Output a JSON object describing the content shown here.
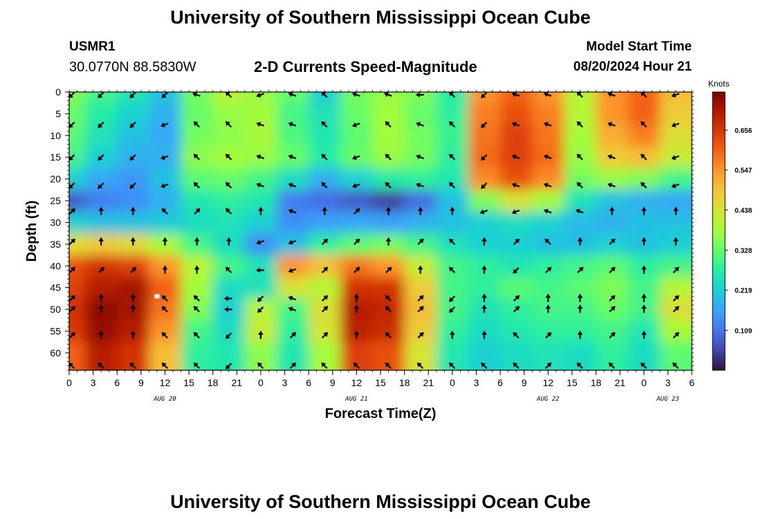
{
  "page": {
    "title_top": "University of Southern Mississippi Ocean Cube",
    "title_bottom": "University of Southern Mississippi Ocean Cube",
    "station": "USMR1",
    "coords": "30.0770N  88.5830W",
    "subtitle": "2-D Currents Speed-Magnitude",
    "model_start_label": "Model Start Time",
    "model_start_value": "08/20/2024 Hour 21"
  },
  "colors": {
    "colormap": [
      "#30123b",
      "#4145ab",
      "#4675ed",
      "#39a2fc",
      "#1bcfd4",
      "#24eca6",
      "#61fc6c",
      "#a4fc3b",
      "#d1e834",
      "#f3c63a",
      "#fe9b2d",
      "#f36315",
      "#d93806",
      "#b11901",
      "#7a0402"
    ],
    "arrow": "#000000",
    "marker": "#ffffff"
  },
  "chart_data": {
    "type": "heatmap",
    "xlabel": "Forecast Time(Z)",
    "ylabel": "Depth (ft)",
    "colorbar_label": "Knots",
    "colorbar_ticks": [
      "0.109",
      "0.219",
      "0.328",
      "0.438",
      "0.547",
      "0.656"
    ],
    "colorbar_range": [
      0.0,
      0.76
    ],
    "ylim": [
      0,
      64
    ],
    "xlim_hours": [
      0,
      78
    ],
    "y_ticks": [
      "0",
      "5",
      "10",
      "15",
      "20",
      "25",
      "30",
      "35",
      "40",
      "45",
      "50",
      "55",
      "60"
    ],
    "x_ticks": [
      "0",
      "3",
      "6",
      "9",
      "12",
      "15",
      "18",
      "21",
      "0",
      "3",
      "6",
      "9",
      "12",
      "15",
      "18",
      "21",
      "0",
      "3",
      "6",
      "9",
      "12",
      "15",
      "18",
      "21",
      "0",
      "3",
      "6"
    ],
    "date_labels": [
      {
        "text": "AUG 20",
        "hour": 12
      },
      {
        "text": "AUG 21",
        "hour": 36
      },
      {
        "text": "AUG 22",
        "hour": 60
      },
      {
        "text": "AUG 23",
        "hour": 75
      }
    ],
    "grid_hours": [
      0,
      4,
      8,
      12,
      16,
      20,
      24,
      28,
      32,
      36,
      40,
      44,
      48,
      52,
      56,
      60,
      64,
      68,
      72,
      76
    ],
    "grid_depths": [
      0,
      5,
      10,
      15,
      20,
      25,
      30,
      35,
      40,
      45,
      50,
      55,
      60
    ],
    "speed_knots": [
      [
        0.35,
        0.3,
        0.26,
        0.2,
        0.34,
        0.4,
        0.37,
        0.33,
        0.22,
        0.34,
        0.37,
        0.35,
        0.27,
        0.55,
        0.6,
        0.55,
        0.4,
        0.55,
        0.6,
        0.5
      ],
      [
        0.33,
        0.27,
        0.22,
        0.18,
        0.33,
        0.37,
        0.38,
        0.3,
        0.25,
        0.33,
        0.38,
        0.33,
        0.28,
        0.57,
        0.62,
        0.57,
        0.4,
        0.55,
        0.6,
        0.48
      ],
      [
        0.32,
        0.25,
        0.2,
        0.17,
        0.34,
        0.36,
        0.39,
        0.31,
        0.26,
        0.32,
        0.38,
        0.34,
        0.29,
        0.58,
        0.64,
        0.58,
        0.38,
        0.52,
        0.57,
        0.45
      ],
      [
        0.3,
        0.22,
        0.18,
        0.18,
        0.36,
        0.38,
        0.37,
        0.33,
        0.27,
        0.33,
        0.37,
        0.34,
        0.28,
        0.59,
        0.64,
        0.59,
        0.37,
        0.48,
        0.5,
        0.42
      ],
      [
        0.22,
        0.17,
        0.15,
        0.2,
        0.32,
        0.33,
        0.3,
        0.24,
        0.18,
        0.22,
        0.27,
        0.28,
        0.26,
        0.56,
        0.62,
        0.56,
        0.34,
        0.37,
        0.35,
        0.3
      ],
      [
        0.08,
        0.12,
        0.14,
        0.18,
        0.26,
        0.28,
        0.26,
        0.12,
        0.1,
        0.08,
        0.05,
        0.1,
        0.2,
        0.35,
        0.44,
        0.38,
        0.25,
        0.2,
        0.18,
        0.17
      ],
      [
        0.22,
        0.2,
        0.2,
        0.21,
        0.24,
        0.25,
        0.22,
        0.14,
        0.16,
        0.17,
        0.16,
        0.18,
        0.2,
        0.22,
        0.24,
        0.22,
        0.19,
        0.18,
        0.2,
        0.2
      ],
      [
        0.45,
        0.48,
        0.46,
        0.38,
        0.3,
        0.24,
        0.14,
        0.2,
        0.28,
        0.32,
        0.34,
        0.3,
        0.25,
        0.22,
        0.22,
        0.2,
        0.2,
        0.22,
        0.2,
        0.22
      ],
      [
        0.62,
        0.66,
        0.64,
        0.55,
        0.4,
        0.3,
        0.25,
        0.55,
        0.5,
        0.58,
        0.55,
        0.42,
        0.3,
        0.28,
        0.26,
        0.28,
        0.3,
        0.32,
        0.28,
        0.3
      ],
      [
        0.64,
        0.7,
        0.72,
        0.6,
        0.38,
        0.24,
        0.25,
        0.44,
        0.4,
        0.66,
        0.66,
        0.48,
        0.3,
        0.28,
        0.32,
        0.3,
        0.32,
        0.35,
        0.3,
        0.4
      ],
      [
        0.66,
        0.74,
        0.72,
        0.58,
        0.35,
        0.22,
        0.4,
        0.3,
        0.45,
        0.7,
        0.68,
        0.5,
        0.3,
        0.25,
        0.28,
        0.3,
        0.3,
        0.33,
        0.3,
        0.45
      ],
      [
        0.65,
        0.73,
        0.7,
        0.55,
        0.3,
        0.24,
        0.42,
        0.28,
        0.44,
        0.69,
        0.67,
        0.48,
        0.28,
        0.24,
        0.26,
        0.28,
        0.28,
        0.3,
        0.26,
        0.38
      ],
      [
        0.6,
        0.7,
        0.66,
        0.5,
        0.28,
        0.26,
        0.36,
        0.26,
        0.38,
        0.64,
        0.62,
        0.44,
        0.26,
        0.22,
        0.24,
        0.25,
        0.24,
        0.28,
        0.24,
        0.32
      ]
    ],
    "arrow_hours": [
      0,
      4,
      8,
      12,
      16,
      20,
      24,
      28,
      32,
      36,
      40,
      44,
      48,
      52,
      56,
      60,
      64,
      68,
      72,
      76
    ],
    "arrow_depths": [
      0,
      7.5,
      15,
      21.5,
      27.5,
      34.5,
      41,
      47.5,
      50,
      56,
      63
    ],
    "arrow_dirs_deg": [
      [
        225,
        225,
        225,
        225,
        160,
        135,
        200,
        160,
        135,
        160,
        160,
        180,
        135,
        225,
        160,
        160,
        135,
        160,
        135,
        200
      ],
      [
        225,
        225,
        225,
        200,
        135,
        135,
        160,
        160,
        135,
        200,
        135,
        160,
        135,
        225,
        160,
        160,
        135,
        160,
        135,
        200
      ],
      [
        225,
        225,
        225,
        200,
        135,
        135,
        160,
        160,
        135,
        200,
        135,
        160,
        135,
        225,
        160,
        160,
        135,
        160,
        135,
        200
      ],
      [
        225,
        225,
        225,
        200,
        135,
        135,
        160,
        160,
        135,
        200,
        135,
        160,
        135,
        225,
        160,
        160,
        135,
        160,
        135,
        200
      ],
      [
        45,
        90,
        90,
        135,
        45,
        135,
        90,
        160,
        90,
        45,
        90,
        90,
        90,
        200,
        200,
        160,
        160,
        90,
        90,
        90
      ],
      [
        45,
        90,
        90,
        90,
        90,
        90,
        200,
        200,
        45,
        45,
        90,
        45,
        135,
        90,
        45,
        135,
        90,
        45,
        90,
        90
      ],
      [
        45,
        45,
        45,
        90,
        90,
        135,
        180,
        200,
        45,
        45,
        45,
        90,
        135,
        90,
        225,
        45,
        45,
        45,
        90,
        45
      ],
      [
        45,
        90,
        90,
        135,
        135,
        180,
        225,
        160,
        45,
        90,
        135,
        45,
        225,
        90,
        45,
        90,
        90,
        45,
        90,
        45
      ],
      [
        45,
        90,
        90,
        135,
        135,
        180,
        225,
        160,
        45,
        90,
        135,
        45,
        225,
        90,
        45,
        90,
        90,
        45,
        90,
        45
      ],
      [
        45,
        90,
        90,
        135,
        135,
        225,
        90,
        45,
        45,
        90,
        135,
        45,
        90,
        90,
        135,
        45,
        90,
        45,
        90,
        45
      ],
      [
        135,
        135,
        135,
        135,
        135,
        225,
        135,
        45,
        135,
        135,
        135,
        135,
        135,
        135,
        135,
        45,
        135,
        135,
        135,
        135
      ]
    ],
    "marker": {
      "hour": 11,
      "depth": 47
    }
  }
}
